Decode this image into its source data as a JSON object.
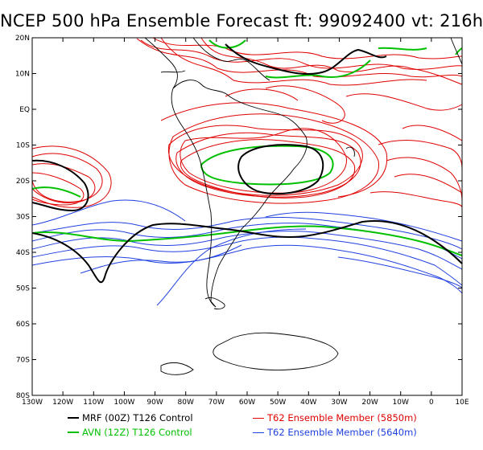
{
  "title": "NCEP 500 hPa Ensemble Forecast  ft: 99092400 vt: 216h",
  "lat_labels": [
    "20N",
    "10N",
    "EQ",
    "10S",
    "20S",
    "30S",
    "40S",
    "50S",
    "60S",
    "70S",
    "80S"
  ],
  "lon_labels": [
    "130W",
    "120W",
    "110W",
    "100W",
    "90W",
    "80W",
    "70W",
    "60W",
    "50W",
    "40W",
    "30W",
    "20W",
    "10W",
    "0",
    "10E"
  ],
  "legend": [
    {
      "label": "MRF (00Z) T126 Control",
      "color": "#000000"
    },
    {
      "label": "AVN (12Z) T126 Control",
      "color": "#00c000"
    },
    {
      "label": "T62 Ensemble Member (5850m)",
      "color": "#e00000"
    },
    {
      "label": "T62 Ensemble Member (5640m)",
      "color": "#2040e0"
    }
  ],
  "colors": {
    "coast": "#000000",
    "grid": "#000000"
  }
}
